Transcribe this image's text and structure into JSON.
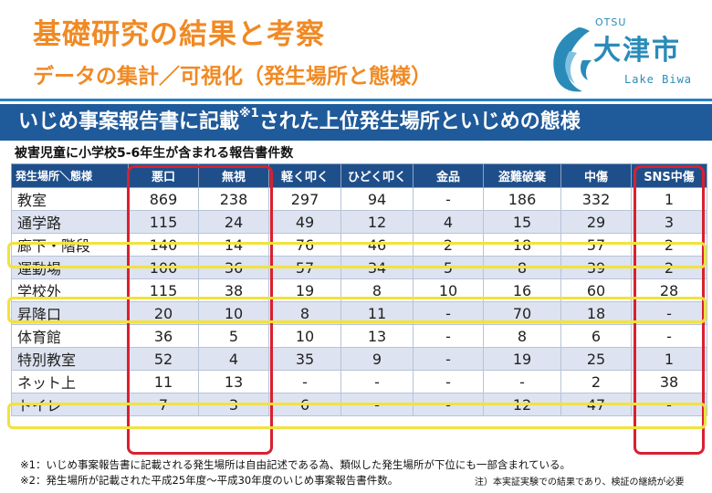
{
  "header": {
    "title": "基礎研究の結果と考察",
    "subtitle": "データの集計／可視化（発生場所と態様）"
  },
  "logo": {
    "otsu": "OTSU",
    "kanji": "大津市",
    "lake": "Lake Biwa",
    "color": "#2a8bb8"
  },
  "banner": {
    "text_before": "いじめ事案報告書に記載",
    "sup": "※1",
    "text_after": "された上位発生場所といじめの態様"
  },
  "table_caption": "被害児童に小学校5-6年生が含まれる報告書件数",
  "table": {
    "row_header": "発生場所＼態様",
    "columns": [
      "悪口",
      "無視",
      "軽く叩く",
      "ひどく叩く",
      "金品",
      "盗難破棄",
      "中傷",
      "SNS中傷"
    ],
    "rows": [
      {
        "place": "教室",
        "values": [
          "869",
          "238",
          "297",
          "94",
          "-",
          "186",
          "332",
          "1"
        ]
      },
      {
        "place": "通学路",
        "values": [
          "115",
          "24",
          "49",
          "12",
          "4",
          "15",
          "29",
          "3"
        ]
      },
      {
        "place": "廊下・階段",
        "values": [
          "140",
          "14",
          "76",
          "46",
          "2",
          "18",
          "57",
          "2"
        ]
      },
      {
        "place": "運動場",
        "values": [
          "100",
          "36",
          "57",
          "34",
          "5",
          "8",
          "39",
          "2"
        ]
      },
      {
        "place": "学校外",
        "values": [
          "115",
          "38",
          "19",
          "8",
          "10",
          "16",
          "60",
          "28"
        ]
      },
      {
        "place": "昇降口",
        "values": [
          "20",
          "10",
          "8",
          "11",
          "-",
          "70",
          "18",
          "-"
        ]
      },
      {
        "place": "体育館",
        "values": [
          "36",
          "5",
          "10",
          "13",
          "-",
          "8",
          "6",
          "-"
        ]
      },
      {
        "place": "特別教室",
        "values": [
          "52",
          "4",
          "35",
          "9",
          "-",
          "19",
          "25",
          "1"
        ]
      },
      {
        "place": "ネット上",
        "values": [
          "11",
          "13",
          "-",
          "-",
          "-",
          "-",
          "2",
          "38"
        ]
      },
      {
        "place": "トイレ",
        "values": [
          "7",
          "3",
          "6",
          "-",
          "-",
          "12",
          "47",
          "-"
        ]
      }
    ]
  },
  "notes": {
    "note1": "※1：いじめ事案報告書に記載される発生場所は自由記述である為、類似した発生場所が下位にも一部含まれている。",
    "note2": "※2：発生場所が記載された平成25年度～平成30年度のいじめ事案報告書件数。",
    "note3": "注）本実証実験での結果であり、検証の継続が必要"
  },
  "colors": {
    "title_orange": "#f08a24",
    "banner_blue": "#1f5a9a",
    "header_blue": "#1f4f8a",
    "ring_red": "#d9202f",
    "ring_yellow": "#f2e23c"
  }
}
